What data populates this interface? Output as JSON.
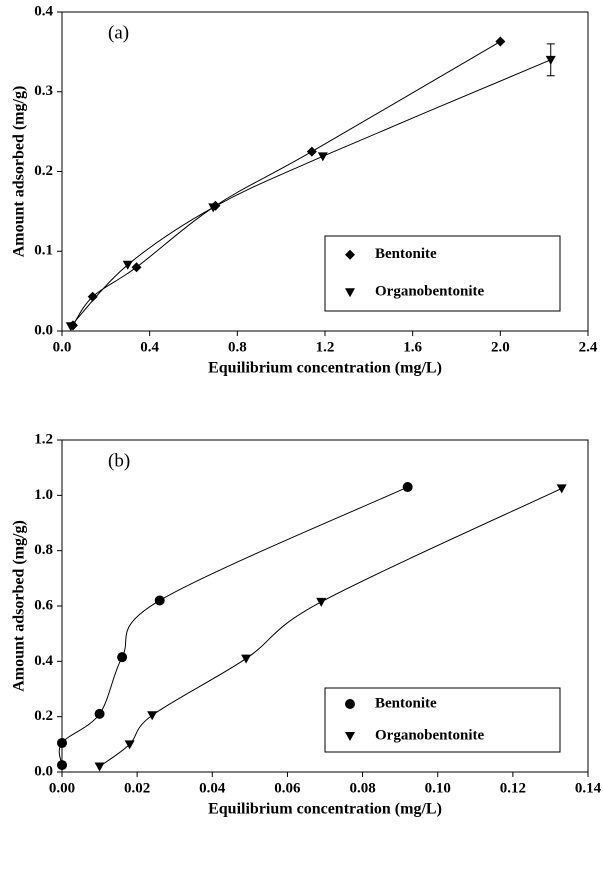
{
  "chart_data": [
    {
      "type": "scatter",
      "panel_label": "(a)",
      "x_label": "Equilibrium concentration (mg/L)",
      "y_label": "Amount adsorbed (mg/g)",
      "xlim": [
        0,
        2.4
      ],
      "xticks": [
        {
          "value": 0,
          "label": "0.0"
        },
        0.4,
        0.8,
        1.2,
        1.6,
        {
          "value": 2,
          "label": "2.0"
        },
        2.4
      ],
      "ylim": [
        0,
        0.4
      ],
      "yticks": [
        {
          "value": 0,
          "label": "0.0"
        },
        0.1,
        0.2,
        0.3,
        0.4
      ],
      "legend": "lower right",
      "series": [
        {
          "name": "Bentonite",
          "color": "#000000",
          "marker": "diamond",
          "x": [
            0.05,
            0.14,
            0.34,
            0.7,
            1.14,
            2.0
          ],
          "values": [
            0.007,
            0.043,
            0.08,
            0.157,
            0.225,
            0.363
          ]
        },
        {
          "name": "Organobentonite",
          "color": "#000000",
          "marker": "triangle-down",
          "x": [
            0.04,
            0.3,
            0.69,
            1.19,
            2.23
          ],
          "values": [
            0.006,
            0.083,
            0.155,
            0.219,
            0.34
          ],
          "errors": [
            null,
            null,
            null,
            null,
            0.02
          ]
        }
      ]
    },
    {
      "type": "scatter",
      "panel_label": "(b)",
      "x_label": "Equilibrium concentration (mg/L)",
      "y_label": "Amount adsorbed (mg/g)",
      "xlim": [
        0,
        0.14
      ],
      "xticks": [
        {
          "value": 0,
          "label": "0.00"
        },
        0.02,
        0.04,
        0.06,
        0.08,
        {
          "value": 0.1,
          "label": "0.10"
        },
        0.12,
        0.14
      ],
      "ylim": [
        0,
        1.2
      ],
      "yticks": [
        {
          "value": 0,
          "label": "0.0"
        },
        0.2,
        0.4,
        0.6,
        0.8,
        {
          "value": 1,
          "label": "1.0"
        },
        1.2
      ],
      "legend": "lower right",
      "series": [
        {
          "name": "Bentonite",
          "color": "#000000",
          "marker": "circle",
          "x": [
            0,
            0,
            0.01,
            0.016,
            0.026,
            0.092
          ],
          "values": [
            0.025,
            0.105,
            0.21,
            0.415,
            0.62,
            1.03
          ]
        },
        {
          "name": "Organobentonite",
          "color": "#000000",
          "marker": "triangle-down",
          "x": [
            0.01,
            0.018,
            0.024,
            0.049,
            0.069,
            0.133
          ],
          "values": [
            0.02,
            0.1,
            0.205,
            0.41,
            0.615,
            1.025
          ]
        }
      ]
    }
  ]
}
